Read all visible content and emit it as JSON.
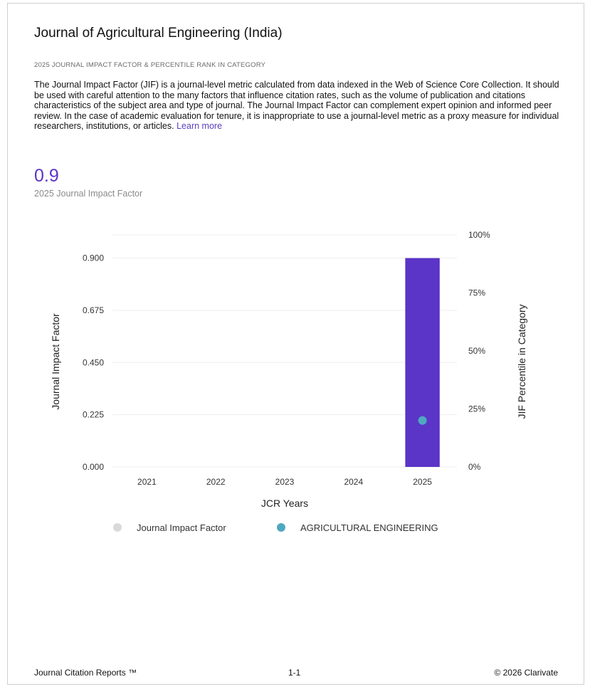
{
  "journal_title": "Journal of Agricultural Engineering (India)",
  "section_heading": "2025 JOURNAL IMPACT FACTOR & PERCENTILE RANK IN CATEGORY",
  "description": "The Journal Impact Factor (JIF) is a journal-level metric calculated from data indexed in the Web of Science Core Collection. It should be used with careful attention to the many factors that influence citation rates, such as the volume of publication and citations characteristics of the subject area and type of journal. The Journal Impact Factor can complement expert opinion and informed peer review. In the case of academic evaluation for tenure, it is inappropriate to use a journal-level metric as a proxy measure for individual researchers, institutions, or articles.",
  "learn_more": "Learn more",
  "jif": {
    "value": "0.9",
    "label": "2025 Journal Impact Factor"
  },
  "chart_data": {
    "type": "bar",
    "xlabel": "JCR Years",
    "ylabel": "Journal Impact Factor",
    "y2label": "JIF Percentile in Category",
    "categories": [
      "2021",
      "2022",
      "2023",
      "2024",
      "2025"
    ],
    "ylim": [
      0,
      1.0
    ],
    "y2lim": [
      0,
      100
    ],
    "yticks": [
      "0.000",
      "0.225",
      "0.450",
      "0.675",
      "0.900"
    ],
    "ytick_values": [
      0,
      0.225,
      0.45,
      0.675,
      0.9
    ],
    "y2ticks": [
      "0%",
      "25%",
      "50%",
      "75%",
      "100%"
    ],
    "y2tick_values": [
      0,
      25,
      50,
      75,
      100
    ],
    "series": [
      {
        "name": "Journal Impact Factor",
        "kind": "bar",
        "axis": "left",
        "values": [
          null,
          null,
          null,
          null,
          0.9
        ]
      },
      {
        "name": "AGRICULTURAL ENGINEERING",
        "kind": "point",
        "axis": "right",
        "values": [
          null,
          null,
          null,
          null,
          20
        ]
      }
    ],
    "colors": {
      "bar": "#5b34c8",
      "point": "#4fa8c0",
      "legend_bar": "#d9d9d9",
      "grid": "#eeeeee"
    },
    "grid": true,
    "legend": "bottom"
  },
  "footer": {
    "left": "Journal Citation Reports ™",
    "center": "1-1",
    "right": "© 2026 Clarivate"
  }
}
